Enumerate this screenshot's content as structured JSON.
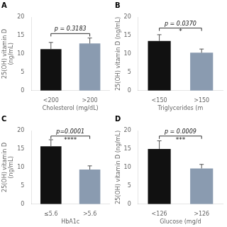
{
  "chart_data": [
    {
      "type": "bar",
      "title": "A",
      "categories": [
        "<200",
        ">200"
      ],
      "values": [
        11.3,
        12.8
      ],
      "errors": [
        1.8,
        1.5
      ],
      "colors": [
        "#111111",
        "#8a9bb0"
      ],
      "xlabel": "Cholesterol (mg/dL)",
      "ylabel": "25(OH) vitamin D\n(ng/mL)",
      "ylim": [
        0,
        20
      ],
      "yticks": [
        0,
        5,
        10,
        15,
        20
      ],
      "grid": false,
      "annotations": [
        {
          "type": "bracket",
          "y": 15.5,
          "text": "p = 0.3183"
        }
      ]
    },
    {
      "type": "bar",
      "title": "B",
      "categories": [
        "<150",
        ">150"
      ],
      "values": [
        13.5,
        10.3
      ],
      "errors": [
        1.7,
        1.0
      ],
      "colors": [
        "#111111",
        "#8a9bb0"
      ],
      "xlabel": "Triglycerides (m",
      "ylabel": "25(OH) vitamin D (ng/mL)",
      "ylim": [
        0,
        20
      ],
      "yticks": [
        0,
        5,
        10,
        15,
        20
      ],
      "grid": false,
      "annotations": [
        {
          "type": "bracket",
          "y": 17.0,
          "text": "p = 0.0370",
          "sig_text": "*"
        }
      ]
    },
    {
      "type": "bar",
      "title": "C",
      "categories": [
        "≤5.6",
        ">5.6"
      ],
      "values": [
        15.7,
        9.4
      ],
      "errors": [
        1.8,
        1.0
      ],
      "colors": [
        "#111111",
        "#8a9bb0"
      ],
      "xlabel": "HbA1c",
      "ylabel": "25(OH) vitamin D\n(ng/mL)",
      "ylim": [
        0,
        20
      ],
      "yticks": [
        0,
        5,
        10,
        15,
        20
      ],
      "grid": false,
      "annotations": [
        {
          "type": "bracket",
          "y": 18.5,
          "text": "p=0.0001",
          "sig_text": "****"
        }
      ]
    },
    {
      "type": "bar",
      "title": "D",
      "categories": [
        "<126",
        ">126"
      ],
      "values": [
        15.0,
        9.7
      ],
      "errors": [
        2.2,
        1.1
      ],
      "colors": [
        "#111111",
        "#8a9bb0"
      ],
      "xlabel": "Glucose (mg/d",
      "ylabel": "25(OH) vitamin D (ng/mL)",
      "ylim": [
        0,
        20
      ],
      "yticks": [
        0,
        5,
        10,
        15,
        20
      ],
      "grid": false,
      "annotations": [
        {
          "type": "bracket",
          "y": 18.5,
          "text": "p = 0.0009",
          "sig_text": "***"
        }
      ]
    }
  ]
}
